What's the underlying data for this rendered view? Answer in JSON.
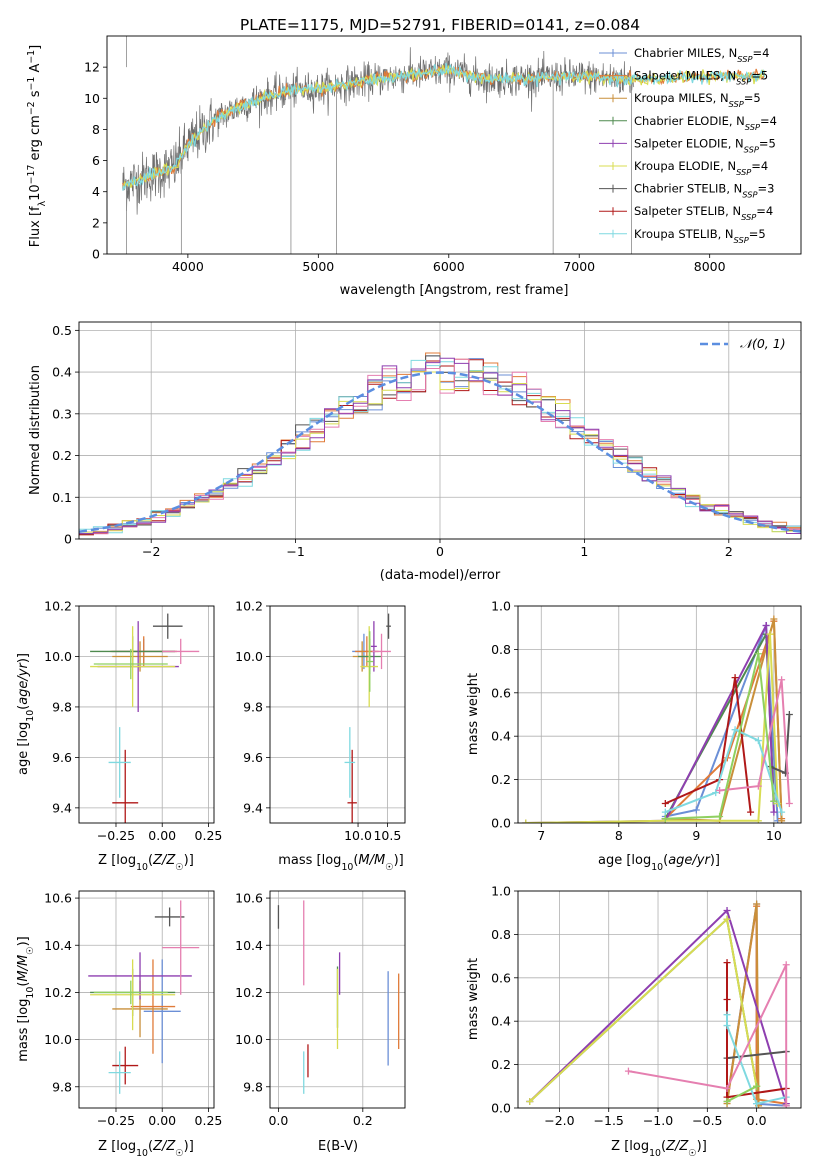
{
  "figure_title": "PLATE=1175, MJD=52791, FIBERID=0141, z=0.084",
  "legend_labels": [
    {
      "base": "Chabrier MILES, N",
      "sub": "SSP",
      "tail": "=4"
    },
    {
      "base": "Salpeter MILES, N",
      "sub": "SSP",
      "tail": "=5"
    },
    {
      "base": "Kroupa MILES, N",
      "sub": "SSP",
      "tail": "=5"
    },
    {
      "base": "Chabrier ELODIE, N",
      "sub": "SSP",
      "tail": "=4"
    },
    {
      "base": "Salpeter ELODIE, N",
      "sub": "SSP",
      "tail": "=5"
    },
    {
      "base": "Kroupa ELODIE, N",
      "sub": "SSP",
      "tail": "=4"
    },
    {
      "base": "Chabrier STELIB, N",
      "sub": "SSP",
      "tail": "=3"
    },
    {
      "base": "Salpeter STELIB, N",
      "sub": "SSP",
      "tail": "=4"
    },
    {
      "base": "Kroupa STELIB, N",
      "sub": "SSP",
      "tail": "=5"
    }
  ],
  "colors": [
    "#6b8fd6",
    "#e07b39",
    "#c98f3a",
    "#4f8a4f",
    "#8e3fb0",
    "#d8dc52",
    "#555555",
    "#b01818",
    "#7fd9e0",
    "#e57fb0",
    "#8fd060"
  ],
  "chart_data": [
    {
      "id": "spectrum",
      "type": "line",
      "xlabel": "wavelength [Angstrom, rest frame]",
      "ylabel": "Flux [f_λ 10^-17 erg cm^-2 s^-1 A^-1]",
      "xlim": [
        3380,
        8700
      ],
      "ylim": [
        0,
        14
      ],
      "xticks": [
        4000,
        5000,
        6000,
        7000,
        8000
      ],
      "yticks": [
        0,
        2,
        4,
        6,
        8,
        10,
        12
      ],
      "grid": false,
      "legend_position": "upper-right",
      "continuum": [
        [
          3500,
          4.4
        ],
        [
          3700,
          5.0
        ],
        [
          3900,
          5.6
        ],
        [
          4000,
          7.0
        ],
        [
          4200,
          8.6
        ],
        [
          4400,
          9.5
        ],
        [
          4600,
          10.1
        ],
        [
          4800,
          10.5
        ],
        [
          5000,
          10.6
        ],
        [
          5200,
          10.9
        ],
        [
          5500,
          11.3
        ],
        [
          5800,
          11.6
        ],
        [
          6000,
          11.8
        ],
        [
          6300,
          11.2
        ],
        [
          6600,
          11.3
        ],
        [
          7000,
          11.4
        ],
        [
          7200,
          11.3
        ],
        [
          7400,
          11.2
        ],
        [
          8000,
          11.4
        ],
        [
          8400,
          11.5
        ]
      ],
      "data_xmax": 7420,
      "model_xmax": 8420
    },
    {
      "id": "residuals",
      "type": "area",
      "xlabel": "(data-model)/error",
      "ylabel": "Normed distribution",
      "xlim": [
        -2.5,
        2.5
      ],
      "ylim": [
        0,
        0.52
      ],
      "xticks": [
        -2,
        -1,
        0,
        1,
        2
      ],
      "yticks": [
        0.0,
        0.1,
        0.2,
        0.3,
        0.4,
        0.5
      ],
      "grid": true,
      "legend_position": "upper-right",
      "legend_text": "𝒩(0, 1)",
      "bin_width": 0.1,
      "gaussian": {
        "mean": 0,
        "sigma": 1
      }
    },
    {
      "id": "age_vs_Z",
      "type": "scatter",
      "xlabel": "Z [log10(Z/Z☉)]",
      "ylabel": "age  [log10(age/yr)]",
      "xlim": [
        -0.45,
        0.28
      ],
      "ylim": [
        9.34,
        10.2
      ],
      "xticks": [
        -0.25,
        0.0,
        0.25
      ],
      "xtick_labels": [
        "−0.25",
        "0.00",
        "0.25"
      ],
      "yticks": [
        9.4,
        9.6,
        9.8,
        10.0,
        10.2
      ],
      "ytick_labels": [
        "9.4",
        "9.6",
        "9.8",
        "10.0",
        "10.2"
      ],
      "grid": true,
      "points": [
        {
          "c": 0,
          "x": -0.1,
          "xe": 0.17,
          "y": 10.02,
          "ye": 0.05
        },
        {
          "c": 1,
          "x": -0.1,
          "xe": 0.18,
          "y": 10.02,
          "ye": 0.06
        },
        {
          "c": 2,
          "x": -0.12,
          "xe": 0.15,
          "y": 10.0,
          "ye": 0.06
        },
        {
          "c": 3,
          "x": -0.16,
          "xe": 0.23,
          "y": 10.02,
          "ye": 0.06
        },
        {
          "c": 4,
          "x": -0.13,
          "xe": 0.22,
          "y": 9.96,
          "ye": 0.18
        },
        {
          "c": 5,
          "x": -0.16,
          "xe": 0.23,
          "y": 9.96,
          "ye": 0.16
        },
        {
          "c": 6,
          "x": 0.03,
          "xe": 0.08,
          "y": 10.12,
          "ye": 0.05
        },
        {
          "c": 7,
          "x": -0.2,
          "xe": 0.07,
          "y": 9.42,
          "ye": 0.21
        },
        {
          "c": 8,
          "x": -0.23,
          "xe": 0.06,
          "y": 9.58,
          "ye": 0.14
        },
        {
          "c": 9,
          "x": 0.1,
          "xe": 0.1,
          "y": 10.02,
          "ye": 0.05
        },
        {
          "c": 10,
          "x": -0.17,
          "xe": 0.2,
          "y": 9.97,
          "ye": 0.06
        }
      ]
    },
    {
      "id": "age_vs_mass",
      "type": "scatter",
      "xlabel": "mass [log10(M/M☉)]",
      "ylabel": "",
      "xlim": [
        8.5,
        10.8
      ],
      "ylim": [
        9.34,
        10.2
      ],
      "xticks": [
        10.0,
        10.5
      ],
      "xtick_labels": [
        "10.0",
        "10.5"
      ],
      "yticks": [
        9.4,
        9.6,
        9.8,
        10.0,
        10.2
      ],
      "ytick_labels": [
        "9.4",
        "9.6",
        "9.8",
        "10.0",
        "10.2"
      ],
      "grid": true,
      "points": [
        {
          "c": 0,
          "x": 10.1,
          "xe": 0.2,
          "y": 10.02,
          "ye": 0.07
        },
        {
          "c": 1,
          "x": 10.15,
          "xe": 0.2,
          "y": 10.02,
          "ye": 0.06
        },
        {
          "c": 2,
          "x": 10.07,
          "xe": 0.16,
          "y": 10.0,
          "ye": 0.06
        },
        {
          "c": 3,
          "x": 10.2,
          "xe": 0.2,
          "y": 10.0,
          "ye": 0.07
        },
        {
          "c": 4,
          "x": 10.27,
          "xe": 0.05,
          "y": 10.04,
          "ye": 0.1
        },
        {
          "c": 5,
          "x": 10.19,
          "xe": 0.15,
          "y": 9.96,
          "ye": 0.16
        },
        {
          "c": 6,
          "x": 10.52,
          "xe": 0.04,
          "y": 10.12,
          "ye": 0.05
        },
        {
          "c": 7,
          "x": 9.9,
          "xe": 0.08,
          "y": 9.42,
          "ye": 0.21
        },
        {
          "c": 8,
          "x": 9.86,
          "xe": 0.09,
          "y": 9.58,
          "ye": 0.14
        },
        {
          "c": 9,
          "x": 10.4,
          "xe": 0.16,
          "y": 10.02,
          "ye": 0.07
        },
        {
          "c": 10,
          "x": 10.2,
          "xe": 0.06,
          "y": 9.98,
          "ye": 0.12
        }
      ]
    },
    {
      "id": "massweight_vs_age",
      "type": "line",
      "xlabel": "age  [log10(age/yr)]",
      "ylabel": "mass weight",
      "xlim": [
        6.7,
        10.35
      ],
      "ylim": [
        0,
        1
      ],
      "xticks": [
        7,
        8,
        9,
        10
      ],
      "xtick_labels": [
        "7",
        "8",
        "9",
        "10"
      ],
      "yticks": [
        0.0,
        0.2,
        0.4,
        0.6,
        0.8,
        1.0
      ],
      "ytick_labels": [
        "0.0",
        "0.2",
        "0.4",
        "0.6",
        "0.8",
        "1.0"
      ],
      "grid": true,
      "series": [
        {
          "c": 0,
          "points": [
            [
              8.6,
              0.03
            ],
            [
              9.0,
              0.06
            ],
            [
              9.9,
              0.91
            ],
            [
              10.05,
              0.01
            ]
          ]
        },
        {
          "c": 1,
          "points": [
            [
              8.6,
              0.02
            ],
            [
              9.4,
              0.3
            ],
            [
              10.0,
              0.93
            ],
            [
              10.1,
              0.02
            ]
          ]
        },
        {
          "c": 2,
          "points": [
            [
              8.6,
              0.02
            ],
            [
              9.3,
              0.01
            ],
            [
              10.0,
              0.94
            ],
            [
              10.1,
              0.01
            ]
          ]
        },
        {
          "c": 3,
          "points": [
            [
              8.6,
              0.02
            ],
            [
              9.9,
              0.87
            ],
            [
              10.0,
              0.1
            ]
          ]
        },
        {
          "c": 4,
          "points": [
            [
              6.8,
              0.0
            ],
            [
              8.6,
              0.01
            ],
            [
              9.9,
              0.91
            ],
            [
              10.0,
              0.05
            ]
          ]
        },
        {
          "c": 5,
          "points": [
            [
              6.8,
              0.0
            ],
            [
              8.6,
              0.01
            ],
            [
              9.8,
              0.01
            ],
            [
              9.95,
              0.87
            ],
            [
              10.05,
              0.09
            ]
          ]
        },
        {
          "c": 6,
          "points": [
            [
              9.95,
              0.26
            ],
            [
              10.15,
              0.23
            ],
            [
              10.2,
              0.5
            ]
          ]
        },
        {
          "c": 7,
          "points": [
            [
              8.6,
              0.09
            ],
            [
              9.3,
              0.2
            ],
            [
              9.5,
              0.67
            ],
            [
              9.7,
              0.05
            ]
          ]
        },
        {
          "c": 8,
          "points": [
            [
              8.6,
              0.05
            ],
            [
              9.25,
              0.14
            ],
            [
              9.5,
              0.43
            ],
            [
              9.8,
              0.38
            ],
            [
              10.1,
              0.05
            ]
          ]
        },
        {
          "c": 9,
          "points": [
            [
              9.3,
              0.15
            ],
            [
              9.8,
              0.17
            ],
            [
              10.1,
              0.66
            ],
            [
              10.2,
              0.09
            ]
          ]
        },
        {
          "c": 10,
          "points": [
            [
              8.6,
              0.02
            ],
            [
              9.3,
              0.03
            ],
            [
              9.8,
              0.78
            ],
            [
              10.0,
              0.1
            ]
          ]
        }
      ]
    },
    {
      "id": "mass_vs_Z",
      "type": "scatter",
      "xlabel": "Z [log10(Z/Z☉)]",
      "ylabel": "mass [log10(M/M☉)]",
      "xlim": [
        -0.45,
        0.28
      ],
      "ylim": [
        9.71,
        10.63
      ],
      "xticks": [
        -0.25,
        0.0,
        0.25
      ],
      "xtick_labels": [
        "−0.25",
        "0.00",
        "0.25"
      ],
      "yticks": [
        9.8,
        10.0,
        10.2,
        10.4,
        10.6
      ],
      "ytick_labels": [
        "9.8",
        "10.0",
        "10.2",
        "10.4",
        "10.6"
      ],
      "grid": true,
      "points": [
        {
          "c": 0,
          "x": 0.0,
          "xe": 0.1,
          "y": 10.12,
          "ye": 0.22
        },
        {
          "c": 1,
          "x": -0.05,
          "xe": 0.12,
          "y": 10.14,
          "ye": 0.2
        },
        {
          "c": 2,
          "x": -0.12,
          "xe": 0.15,
          "y": 10.13,
          "ye": 0.12
        },
        {
          "c": 3,
          "x": -0.16,
          "xe": 0.23,
          "y": 10.2,
          "ye": 0.1
        },
        {
          "c": 4,
          "x": -0.12,
          "xe": 0.28,
          "y": 10.27,
          "ye": 0.1
        },
        {
          "c": 5,
          "x": -0.16,
          "xe": 0.23,
          "y": 10.19,
          "ye": 0.15
        },
        {
          "c": 6,
          "x": 0.04,
          "xe": 0.08,
          "y": 10.52,
          "ye": 0.04
        },
        {
          "c": 7,
          "x": -0.2,
          "xe": 0.07,
          "y": 9.89,
          "ye": 0.08
        },
        {
          "c": 8,
          "x": -0.23,
          "xe": 0.06,
          "y": 9.86,
          "ye": 0.09
        },
        {
          "c": 9,
          "x": 0.1,
          "xe": 0.1,
          "y": 10.39,
          "ye": 0.2
        },
        {
          "c": 10,
          "x": -0.17,
          "xe": 0.2,
          "y": 10.2,
          "ye": 0.05
        }
      ]
    },
    {
      "id": "mass_vs_ebv",
      "type": "scatter",
      "xlabel": "E(B-V)",
      "ylabel": "",
      "xlim": [
        -0.02,
        0.3
      ],
      "ylim": [
        9.71,
        10.63
      ],
      "xticks": [
        0.0,
        0.2
      ],
      "xtick_labels": [
        "0.0",
        "0.2"
      ],
      "yticks": [
        9.8,
        10.0,
        10.2,
        10.4,
        10.6
      ],
      "ytick_labels": [
        "9.8",
        "10.0",
        "10.2",
        "10.4",
        "10.6"
      ],
      "grid": true,
      "points": [
        {
          "c": 6,
          "x": 0.0,
          "xe": 0,
          "y": 10.52,
          "ye": 0.05
        },
        {
          "c": 8,
          "x": 0.06,
          "xe": 0,
          "y": 9.86,
          "ye": 0.09
        },
        {
          "c": 7,
          "x": 0.07,
          "xe": 0,
          "y": 9.91,
          "ye": 0.07
        },
        {
          "c": 9,
          "x": 0.06,
          "xe": 0,
          "y": 10.41,
          "ye": 0.18
        },
        {
          "c": 3,
          "x": 0.14,
          "xe": 0,
          "y": 10.18,
          "ye": 0.13
        },
        {
          "c": 5,
          "x": 0.14,
          "xe": 0,
          "y": 10.13,
          "ye": 0.17
        },
        {
          "c": 4,
          "x": 0.145,
          "xe": 0,
          "y": 10.28,
          "ye": 0.09
        },
        {
          "c": 0,
          "x": 0.26,
          "xe": 0,
          "y": 10.09,
          "ye": 0.2
        },
        {
          "c": 1,
          "x": 0.285,
          "xe": 0,
          "y": 10.12,
          "ye": 0.16
        }
      ]
    },
    {
      "id": "massweight_vs_Z",
      "type": "line",
      "xlabel": "Z [log10(Z/Z☉)]",
      "ylabel": "mass weight",
      "xlim": [
        -2.42,
        0.45
      ],
      "ylim": [
        0,
        1
      ],
      "xticks": [
        -2.0,
        -1.5,
        -1.0,
        -0.5,
        0.0
      ],
      "xtick_labels": [
        "−2.0",
        "−1.5",
        "−1.0",
        "−0.5",
        "0.0"
      ],
      "yticks": [
        0.0,
        0.2,
        0.4,
        0.6,
        0.8,
        1.0
      ],
      "ytick_labels": [
        "0.0",
        "0.2",
        "0.4",
        "0.6",
        "0.8",
        "1.0"
      ],
      "grid": true,
      "series": [
        {
          "c": 0,
          "points": [
            [
              -0.3,
              0.03
            ],
            [
              0.0,
              0.94
            ],
            [
              0.0,
              0.02
            ],
            [
              0.3,
              0.01
            ]
          ]
        },
        {
          "c": 1,
          "points": [
            [
              -0.3,
              0.03
            ],
            [
              0.0,
              0.93
            ],
            [
              0.0,
              0.04
            ],
            [
              0.3,
              0.02
            ]
          ]
        },
        {
          "c": 2,
          "points": [
            [
              -0.3,
              0.02
            ],
            [
              0.0,
              0.94
            ],
            [
              0.02,
              0.01
            ]
          ]
        },
        {
          "c": 3,
          "points": [
            [
              -2.3,
              0.03
            ],
            [
              -0.3,
              0.87
            ],
            [
              0.0,
              0.1
            ]
          ]
        },
        {
          "c": 4,
          "points": [
            [
              -2.3,
              0.03
            ],
            [
              -0.3,
              0.91
            ],
            [
              0.3,
              0.02
            ]
          ]
        },
        {
          "c": 5,
          "points": [
            [
              -2.3,
              0.03
            ],
            [
              -0.3,
              0.87
            ],
            [
              0.0,
              0.1
            ]
          ]
        },
        {
          "c": 6,
          "points": [
            [
              -0.3,
              0.23
            ],
            [
              0.3,
              0.26
            ]
          ]
        },
        {
          "c": 7,
          "points": [
            [
              -0.3,
              0.67
            ],
            [
              -0.3,
              0.5
            ],
            [
              -0.3,
              0.05
            ],
            [
              0.3,
              0.09
            ]
          ]
        },
        {
          "c": 8,
          "points": [
            [
              -0.3,
              0.43
            ],
            [
              -0.3,
              0.38
            ],
            [
              0.0,
              0.02
            ],
            [
              0.3,
              0.05
            ]
          ]
        },
        {
          "c": 9,
          "points": [
            [
              -1.3,
              0.17
            ],
            [
              -0.3,
              0.09
            ],
            [
              0.3,
              0.66
            ],
            [
              0.3,
              0.01
            ]
          ]
        },
        {
          "c": 10,
          "points": [
            [
              -0.3,
              0.03
            ],
            [
              0.0,
              0.1
            ]
          ]
        }
      ]
    }
  ]
}
